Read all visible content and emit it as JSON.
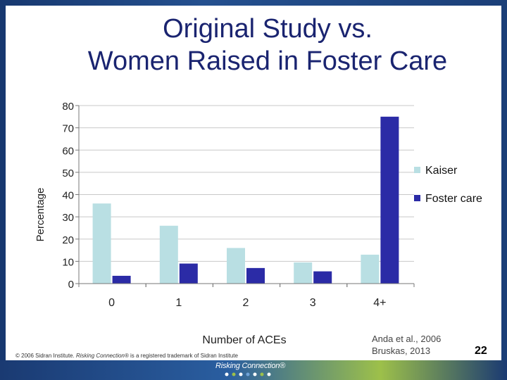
{
  "slide": {
    "title_line1": "Original Study vs.",
    "title_line2": "Women Raised in Foster Care",
    "copyright_prefix": "© 2006 Sidran Institute. ",
    "copyright_brand": "Risking Connection®",
    "copyright_suffix": " is a registered trademark of Sidran Institute",
    "logo_text": "Risking Connection®",
    "citation_line1": "Anda et al., 2006",
    "citation_line2": "Bruskas, 2013",
    "page_number": "22"
  },
  "colors": {
    "kaiser": "#b9dfe3",
    "foster": "#2b2ba6",
    "grid": "#c8c8c8",
    "axis": "#777777",
    "title": "#1a2470"
  },
  "chart_data": {
    "type": "bar",
    "title": "",
    "xlabel": "Number of ACEs",
    "ylabel": "Percentage",
    "categories": [
      "0",
      "1",
      "2",
      "3",
      "4+"
    ],
    "series": [
      {
        "name": "Kaiser",
        "values": [
          36,
          26,
          16,
          9.5,
          13
        ]
      },
      {
        "name": "Foster care",
        "values": [
          3.5,
          9,
          7,
          5.5,
          75
        ]
      }
    ],
    "ylim": [
      0,
      80
    ],
    "yticks": [
      "0",
      "10",
      "20",
      "30",
      "40",
      "50",
      "60",
      "70",
      "80"
    ],
    "grid": true,
    "legend": "right"
  }
}
